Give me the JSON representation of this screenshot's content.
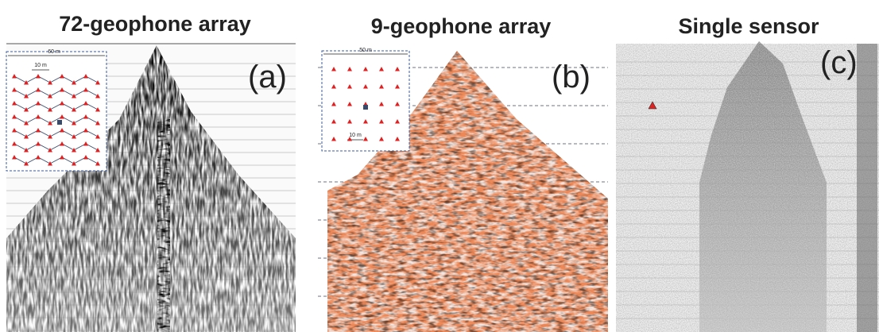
{
  "panels": [
    {
      "title": "72-geophone array",
      "label": "(a)",
      "inset": {
        "width_label": "60 m",
        "spacing_label": "10 m"
      }
    },
    {
      "title": "9-geophone array",
      "label": "(b)",
      "inset": {
        "width_label": "50 m",
        "spacing_label": "10 m"
      }
    },
    {
      "title": "Single sensor",
      "label": "(c)"
    }
  ]
}
